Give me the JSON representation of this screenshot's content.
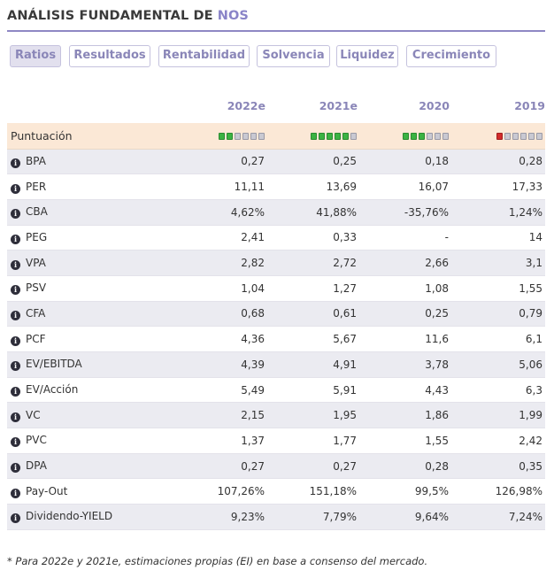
{
  "header": {
    "title_prefix": "ANÁLISIS FUNDAMENTAL DE ",
    "title_company": "NOS"
  },
  "tabs": [
    {
      "label": "Ratios",
      "active": true
    },
    {
      "label": "Resultados",
      "active": false
    },
    {
      "label": "Rentabilidad",
      "active": false
    },
    {
      "label": "Solvencia",
      "active": false
    },
    {
      "label": "Liquidez",
      "active": false
    },
    {
      "label": "Crecimiento",
      "active": false
    }
  ],
  "table": {
    "columns": [
      "2022e",
      "2021e",
      "2020",
      "2019"
    ],
    "score": {
      "label": "Puntuación",
      "values": [
        2,
        5,
        3,
        1
      ],
      "max": 6,
      "colors": [
        "green",
        "green",
        "green",
        "red"
      ]
    },
    "rows": [
      {
        "label": "BPA",
        "values": [
          "0,27",
          "0,25",
          "0,18",
          "0,28"
        ]
      },
      {
        "label": "PER",
        "values": [
          "11,11",
          "13,69",
          "16,07",
          "17,33"
        ]
      },
      {
        "label": "CBA",
        "values": [
          "4,62%",
          "41,88%",
          "-35,76%",
          "1,24%"
        ]
      },
      {
        "label": "PEG",
        "values": [
          "2,41",
          "0,33",
          "-",
          "14"
        ]
      },
      {
        "label": "VPA",
        "values": [
          "2,82",
          "2,72",
          "2,66",
          "3,1"
        ]
      },
      {
        "label": "PSV",
        "values": [
          "1,04",
          "1,27",
          "1,08",
          "1,55"
        ]
      },
      {
        "label": "CFA",
        "values": [
          "0,68",
          "0,61",
          "0,25",
          "0,79"
        ]
      },
      {
        "label": "PCF",
        "values": [
          "4,36",
          "5,67",
          "11,6",
          "6,1"
        ]
      },
      {
        "label": "EV/EBITDA",
        "values": [
          "4,39",
          "4,91",
          "3,78",
          "5,06"
        ]
      },
      {
        "label": "EV/Acción",
        "values": [
          "5,49",
          "5,91",
          "4,43",
          "6,3"
        ]
      },
      {
        "label": "VC",
        "values": [
          "2,15",
          "1,95",
          "1,86",
          "1,99"
        ]
      },
      {
        "label": "PVC",
        "values": [
          "1,37",
          "1,77",
          "1,55",
          "2,42"
        ]
      },
      {
        "label": "DPA",
        "values": [
          "0,27",
          "0,27",
          "0,28",
          "0,35"
        ]
      },
      {
        "label": "Pay-Out",
        "values": [
          "107,26%",
          "151,18%",
          "99,5%",
          "126,98%"
        ]
      },
      {
        "label": "Dividendo-YIELD",
        "values": [
          "9,23%",
          "7,79%",
          "9,64%",
          "7,24%"
        ]
      }
    ]
  },
  "footnote": "* Para 2022e y 2021e, estimaciones propias (EI) en base a consenso del mercado.",
  "colors": {
    "accent": "#8a84c8",
    "score_bg": "#fbe8d6",
    "row_alt_bg": "#ebebf1",
    "pip_green": "#3bb343",
    "pip_red": "#d22b2b"
  }
}
